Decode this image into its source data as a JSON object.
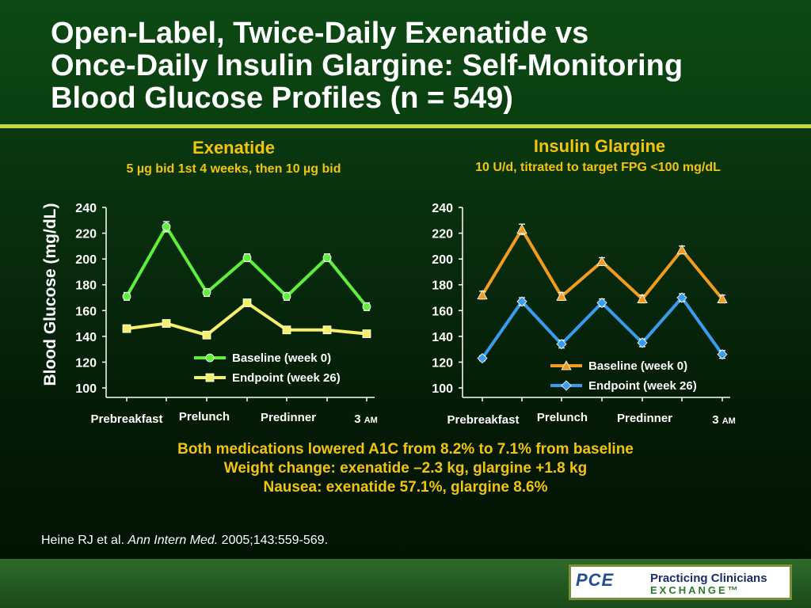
{
  "slide": {
    "title_lines": [
      "Open-Label, Twice-Daily Exenatide vs",
      "Once-Daily Insulin Glargine: Self-Monitoring",
      "Blood Glucose Profiles (n = 549)"
    ],
    "findings": [
      "Both medications lowered A1C from 8.2% to 7.1% from baseline",
      "Weight change: exenatide –2.3 kg, glargine +1.8 kg",
      "Nausea: exenatide 57.1%, glargine 8.6%"
    ],
    "citation": {
      "authors": "Heine RJ et al. ",
      "journal": "Ann Intern Med.",
      "details": " 2005;143:559-569."
    },
    "logo": {
      "mark": "PCE",
      "line1": "Practicing Clinicians",
      "line2": "EXCHANGE™"
    },
    "colors": {
      "background": "#062a0b",
      "title_rule": "#c5d63a",
      "accent_text": "#f2c40c"
    }
  },
  "chart_data": [
    {
      "type": "line",
      "title": "Exenatide",
      "subtitle": "5 µg bid 1st 4 weeks, then 10 µg bid",
      "ylabel": "Blood Glucose (mg/dL)",
      "xlabel": "",
      "ylim": [
        100,
        240
      ],
      "yticks": [
        "240",
        "220",
        "200",
        "180",
        "160",
        "140",
        "120",
        "100"
      ],
      "x_axis_labels": [
        "Prebreakfast",
        "Prelunch",
        "Predinner",
        "3 AM"
      ],
      "legend_position": "lower-right",
      "series": [
        {
          "name": "Baseline (week 0)",
          "color": "#5ef03c",
          "marker": "circle",
          "values": [
            171,
            225,
            174,
            201,
            171,
            201,
            163
          ],
          "errors": [
            3,
            4,
            3,
            3,
            3,
            3,
            3
          ]
        },
        {
          "name": "Endpoint (week 26)",
          "color": "#f5f06a",
          "marker": "square",
          "values": [
            146,
            150,
            141,
            166,
            145,
            145,
            142
          ],
          "errors": [
            0,
            0,
            0,
            0,
            0,
            0,
            0
          ]
        }
      ]
    },
    {
      "type": "line",
      "title": "Insulin Glargine",
      "subtitle": "10 U/d, titrated to target FPG <100 mg/dL",
      "ylabel": "",
      "xlabel": "",
      "ylim": [
        100,
        240
      ],
      "yticks": [
        "240",
        "220",
        "200",
        "180",
        "160",
        "140",
        "120",
        "100"
      ],
      "x_axis_labels": [
        "Prebreakfast",
        "Prelunch",
        "Predinner",
        "3 AM"
      ],
      "legend_position": "lower-right",
      "series": [
        {
          "name": "Baseline (week 0)",
          "color": "#f29b1c",
          "marker": "triangle",
          "values": [
            172,
            223,
            171,
            198,
            169,
            207,
            169
          ],
          "errors": [
            3,
            4,
            3,
            3,
            3,
            3,
            3
          ]
        },
        {
          "name": "Endpoint (week 26)",
          "color": "#3a9cf0",
          "marker": "diamond",
          "values": [
            123,
            167,
            134,
            166,
            135,
            170,
            126
          ],
          "errors": [
            2,
            3,
            3,
            3,
            3,
            3,
            3
          ]
        }
      ]
    }
  ]
}
